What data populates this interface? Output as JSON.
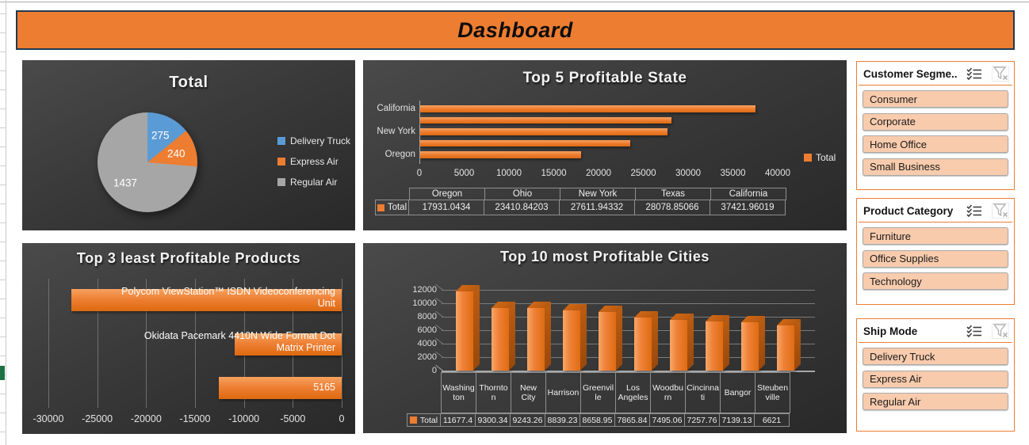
{
  "header": {
    "title": "Dashboard"
  },
  "colors": {
    "accent": "#ED7D31",
    "banner_border": "#1F3A52",
    "pie_blue": "#5B9BD5",
    "pie_orange": "#ED7D31",
    "pie_gray": "#A6A6A6",
    "slicer_item_fill": "#F8CBAD",
    "sheet_marker_green": "#1E7145"
  },
  "chart_data": [
    {
      "type": "pie",
      "title": "Total",
      "labels": [
        "Delivery Truck",
        "Express Air",
        "Regular Air"
      ],
      "values": [
        275,
        240,
        1437
      ],
      "colors": [
        "#5B9BD5",
        "#ED7D31",
        "#A6A6A6"
      ],
      "legend_position": "right",
      "data_labels_shown": true
    },
    {
      "type": "bar",
      "orientation": "horizontal",
      "title": "Top 5 Profitable State",
      "series_name": "Total",
      "categories": [
        "Oregon",
        "Ohio",
        "New York",
        "Texas",
        "California"
      ],
      "values": [
        17931.0434,
        23410.84203,
        27611.94332,
        28078.85066,
        37421.96019
      ],
      "value_labels": [
        "17931.0434",
        "23410.84203",
        "27611.94332",
        "28078.85066",
        "37421.96019"
      ],
      "xlim": [
        0,
        40000
      ],
      "xtick_step": 5000,
      "axis_labels_shown": [
        "California",
        "New York",
        "Oregon"
      ],
      "data_table": true,
      "legend_position": "right"
    },
    {
      "type": "bar",
      "orientation": "horizontal",
      "title": "Top 3 least Profitable Products",
      "bars": [
        {
          "label": "Polycom ViewStation™ ISDN Videoconferencing Unit",
          "value": -27650
        },
        {
          "label": "Okidata Pacemark 4410N Wide Format Dot Matrix Printer",
          "value": -10950
        },
        {
          "label": "5165",
          "value": -12570
        }
      ],
      "xlim": [
        -30000,
        0
      ],
      "xtick_step": 5000,
      "grid": true
    },
    {
      "type": "bar",
      "orientation": "vertical",
      "style": "3d",
      "title": "Top 10 most Profitable Cities",
      "series_name": "Total",
      "categories": [
        "Washington",
        "Thornton",
        "New City",
        "Harrison",
        "Greenville",
        "Los Angeles",
        "Woodburn",
        "Cincinnati",
        "Bangor",
        "Steubenville"
      ],
      "values": [
        11677.4,
        9300.34,
        9243.26,
        8839.23,
        8658.95,
        7865.84,
        7495.06,
        7257.76,
        7139.13,
        6621
      ],
      "value_labels": [
        "11677.4",
        "9300.34",
        "9243.26",
        "8839.23",
        "8658.95",
        "7865.84",
        "7495.06",
        "7257.76",
        "7139.13",
        "6621"
      ],
      "ylim": [
        0,
        12000
      ],
      "ytick_step": 2000,
      "grid": true,
      "data_table": true
    }
  ],
  "slicers": [
    {
      "title": "Customer Segme...",
      "items": [
        "Consumer",
        "Corporate",
        "Home Office",
        "Small Business"
      ],
      "icons": [
        "multi-select-icon",
        "clear-filter-icon"
      ]
    },
    {
      "title": "Product Category",
      "items": [
        "Furniture",
        "Office Supplies",
        "Technology"
      ],
      "icons": [
        "multi-select-icon",
        "clear-filter-icon"
      ]
    },
    {
      "title": "Ship Mode",
      "items": [
        "Delivery Truck",
        "Express Air",
        "Regular Air"
      ],
      "icons": [
        "multi-select-icon",
        "clear-filter-icon"
      ]
    }
  ]
}
